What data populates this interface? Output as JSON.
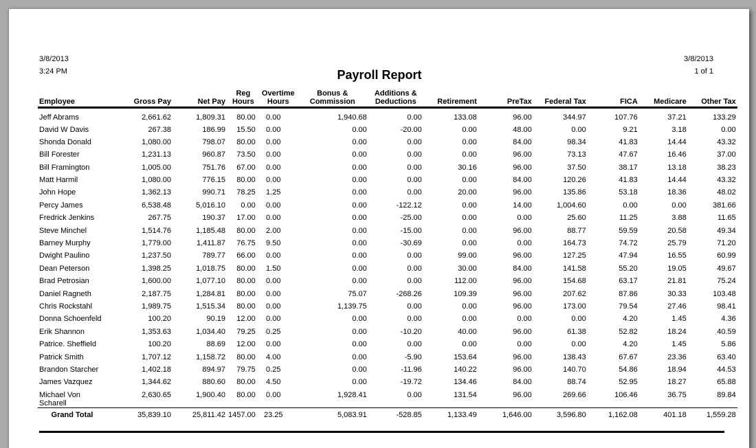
{
  "header": {
    "date_left": "3/8/2013",
    "time_left": "3:24 PM",
    "title": "Payroll Report",
    "date_right": "3/8/2013",
    "page": "1 of 1"
  },
  "columns": [
    {
      "l1": "",
      "l2": "Employee"
    },
    {
      "l1": "",
      "l2": "Gross Pay"
    },
    {
      "l1": "",
      "l2": "Net Pay"
    },
    {
      "l1": "Reg",
      "l2": "Hours"
    },
    {
      "l1": "Overtime",
      "l2": "Hours"
    },
    {
      "l1": "Bonus &",
      "l2": "Commission"
    },
    {
      "l1": "Additions &",
      "l2": "Deductions"
    },
    {
      "l1": "",
      "l2": "Retirement"
    },
    {
      "l1": "",
      "l2": "PreTax"
    },
    {
      "l1": "",
      "l2": "Federal Tax"
    },
    {
      "l1": "",
      "l2": "FICA"
    },
    {
      "l1": "",
      "l2": "Medicare"
    },
    {
      "l1": "",
      "l2": "Other Tax"
    }
  ],
  "rows": [
    [
      "Jeff Abrams",
      "2,661.62",
      "1,809.31",
      "80.00",
      "0.00",
      "1,940.68",
      "0.00",
      "133.08",
      "96.00",
      "344.97",
      "107.76",
      "37.21",
      "133.29"
    ],
    [
      "David W Davis",
      "267.38",
      "186.99",
      "15.50",
      "0.00",
      "0.00",
      "-20.00",
      "0.00",
      "48.00",
      "0.00",
      "9.21",
      "3.18",
      "0.00"
    ],
    [
      "Shonda Donald",
      "1,080.00",
      "798.07",
      "80.00",
      "0.00",
      "0.00",
      "0.00",
      "0.00",
      "84.00",
      "98.34",
      "41.83",
      "14.44",
      "43.32"
    ],
    [
      "Bill Forester",
      "1,231.13",
      "960.87",
      "73.50",
      "0.00",
      "0.00",
      "0.00",
      "0.00",
      "96.00",
      "73.13",
      "47.67",
      "16.46",
      "37.00"
    ],
    [
      "Bill Framington",
      "1,005.00",
      "751.76",
      "67.00",
      "0.00",
      "0.00",
      "0.00",
      "30.16",
      "96.00",
      "37.50",
      "38.17",
      "13.18",
      "38.23"
    ],
    [
      "Matt Harmil",
      "1,080.00",
      "776.15",
      "80.00",
      "0.00",
      "0.00",
      "0.00",
      "0.00",
      "84.00",
      "120.26",
      "41.83",
      "14.44",
      "43.32"
    ],
    [
      "John Hope",
      "1,362.13",
      "990.71",
      "78.25",
      "1.25",
      "0.00",
      "0.00",
      "20.00",
      "96.00",
      "135.86",
      "53.18",
      "18.36",
      "48.02"
    ],
    [
      "Percy James",
      "6,538.48",
      "5,016.10",
      "0.00",
      "0.00",
      "0.00",
      "-122.12",
      "0.00",
      "14.00",
      "1,004.60",
      "0.00",
      "0.00",
      "381.66"
    ],
    [
      "Fredrick Jenkins",
      "267.75",
      "190.37",
      "17.00",
      "0.00",
      "0.00",
      "-25.00",
      "0.00",
      "0.00",
      "25.60",
      "11.25",
      "3.88",
      "11.65"
    ],
    [
      "Steve Minchel",
      "1,514.76",
      "1,185.48",
      "80.00",
      "2.00",
      "0.00",
      "-15.00",
      "0.00",
      "96.00",
      "88.77",
      "59.59",
      "20.58",
      "49.34"
    ],
    [
      "Barney Murphy",
      "1,779.00",
      "1,411.87",
      "76.75",
      "9.50",
      "0.00",
      "-30.69",
      "0.00",
      "0.00",
      "164.73",
      "74.72",
      "25.79",
      "71.20"
    ],
    [
      "Dwight Paulino",
      "1,237.50",
      "789.77",
      "66.00",
      "0.00",
      "0.00",
      "0.00",
      "99.00",
      "96.00",
      "127.25",
      "47.94",
      "16.55",
      "60.99"
    ],
    [
      "Dean Peterson",
      "1,398.25",
      "1,018.75",
      "80.00",
      "1.50",
      "0.00",
      "0.00",
      "30.00",
      "84.00",
      "141.58",
      "55.20",
      "19.05",
      "49.67"
    ],
    [
      "Brad Petrosian",
      "1,600.00",
      "1,077.10",
      "80.00",
      "0.00",
      "0.00",
      "0.00",
      "112.00",
      "96.00",
      "154.68",
      "63.17",
      "21.81",
      "75.24"
    ],
    [
      "Daniel Ragneth",
      "2,187.75",
      "1,284.81",
      "80.00",
      "0.00",
      "75.07",
      "-268.26",
      "109.39",
      "96.00",
      "207.62",
      "87.86",
      "30.33",
      "103.48"
    ],
    [
      "Chris Rockstahl",
      "1,989.75",
      "1,515.34",
      "80.00",
      "0.00",
      "1,139.75",
      "0.00",
      "0.00",
      "96.00",
      "173.00",
      "79.54",
      "27.46",
      "98.41"
    ],
    [
      "Donna Schoenfeld",
      "100.20",
      "90.19",
      "12.00",
      "0.00",
      "0.00",
      "0.00",
      "0.00",
      "0.00",
      "0.00",
      "4.20",
      "1.45",
      "4.36"
    ],
    [
      "Erik Shannon",
      "1,353.63",
      "1,034.40",
      "79.25",
      "0.25",
      "0.00",
      "-10.20",
      "40.00",
      "96.00",
      "61.38",
      "52.82",
      "18.24",
      "40.59"
    ],
    [
      "Patrice. Sheffield",
      "100.20",
      "88.69",
      "12.00",
      "0.00",
      "0.00",
      "0.00",
      "0.00",
      "0.00",
      "0.00",
      "4.20",
      "1.45",
      "5.86"
    ],
    [
      "Patrick Smith",
      "1,707.12",
      "1,158.72",
      "80.00",
      "4.00",
      "0.00",
      "-5.90",
      "153.64",
      "96.00",
      "138.43",
      "67.67",
      "23.36",
      "63.40"
    ],
    [
      "Brandon Starcher",
      "1,402.18",
      "894.97",
      "79.75",
      "0.25",
      "0.00",
      "-11.96",
      "140.22",
      "96.00",
      "140.70",
      "54.86",
      "18.94",
      "44.53"
    ],
    [
      "James Vazquez",
      "1,344.62",
      "880.60",
      "80.00",
      "4.50",
      "0.00",
      "-19.72",
      "134.46",
      "84.00",
      "88.74",
      "52.95",
      "18.27",
      "65.88"
    ]
  ],
  "wrap_row": {
    "name1": "Michael Von",
    "name2": "Scharell",
    "values": [
      "2,630.65",
      "1,900.40",
      "80.00",
      "0.00",
      "1,928.41",
      "0.00",
      "131.54",
      "96.00",
      "269.66",
      "106.46",
      "36.75",
      "89.84"
    ]
  },
  "total": {
    "label": "Grand Total",
    "values": [
      "35,839.10",
      "25,811.42",
      "1457.00",
      "23.25",
      "5,083.91",
      "-528.85",
      "1,133.49",
      "1,646.00",
      "3,596.80",
      "1,162.08",
      "401.18",
      "1,559.28"
    ]
  }
}
